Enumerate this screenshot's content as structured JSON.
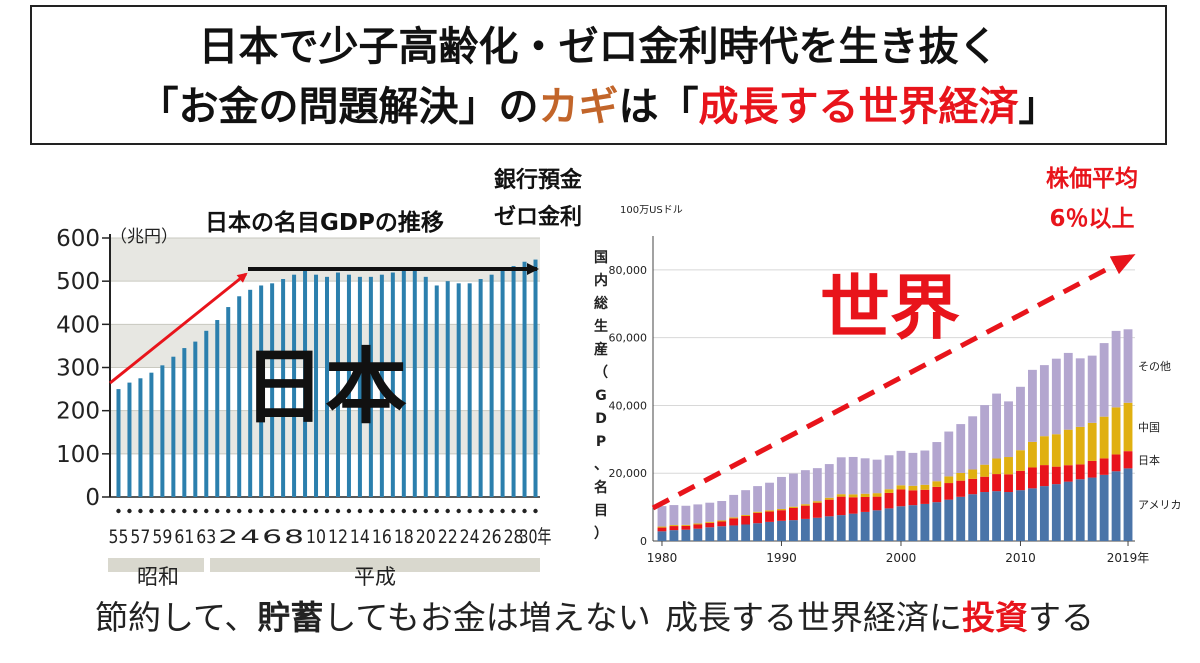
{
  "headline": {
    "line1": "日本で少子高齢化・ゼロ金利時代を生き抜く",
    "line2_a": "「お金の問題解決」の",
    "line2_key": "カギ",
    "line2_b": "は「",
    "line2_red": "成長する世界経済",
    "line2_c": "」"
  },
  "colors": {
    "bar_blue": "#2b7fad",
    "arrow_red": "#e8141b",
    "usa": "#4a74a8",
    "japan": "#e8141b",
    "china": "#e0b010",
    "other": "#b3a6cf",
    "band_gray": "#e7e7e2"
  },
  "annotations": {
    "bank_deposit": "銀行預金",
    "zero_rate": "ゼロ金利",
    "japan_label": "日本",
    "world_label": "世界",
    "stock_avg": "株価平均",
    "six_pct": "6％以上"
  },
  "captions": {
    "left_a": "節約して、",
    "left_b": "貯蓄",
    "left_c": "してもお金は増えない",
    "right_a": "成長する世界経済に",
    "right_b": "投資",
    "right_c": "する"
  },
  "chart_data": [
    {
      "type": "bar",
      "title": "日本の名目GDPの推移",
      "ylabel": "（兆円）",
      "ylim": [
        0,
        600
      ],
      "yticks": [
        "0",
        "100",
        "200",
        "300",
        "400",
        "500",
        "600"
      ],
      "categories": [
        "S55",
        "S56",
        "S57",
        "S58",
        "S59",
        "S60",
        "S61",
        "S62",
        "S63",
        "H1",
        "H2",
        "H3",
        "H4",
        "H5",
        "H6",
        "H7",
        "H8",
        "H9",
        "H10",
        "H11",
        "H12",
        "H13",
        "H14",
        "H15",
        "H16",
        "H17",
        "H18",
        "H19",
        "H20",
        "H21",
        "H22",
        "H23",
        "H24",
        "H25",
        "H26",
        "H27",
        "H28",
        "H29",
        "H30"
      ],
      "values": [
        250,
        265,
        275,
        288,
        305,
        325,
        345,
        360,
        385,
        410,
        440,
        465,
        480,
        490,
        495,
        505,
        515,
        525,
        515,
        510,
        520,
        515,
        510,
        510,
        515,
        520,
        525,
        530,
        510,
        490,
        500,
        495,
        495,
        505,
        515,
        530,
        535,
        545,
        550
      ],
      "x_tick_labels": [
        "55",
        "57",
        "59",
        "61",
        "63",
        "2",
        "4",
        "6",
        "8",
        "10",
        "12",
        "14",
        "16",
        "18",
        "20",
        "22",
        "24",
        "26",
        "28",
        "30年"
      ],
      "era_labels": [
        "昭和",
        "平成"
      ]
    },
    {
      "type": "bar",
      "stacked": true,
      "unit": "100万USドル",
      "ylabel": "国内総生産（GDP、名目）",
      "ylim": [
        0,
        90000
      ],
      "yticks": [
        "0",
        "20,000",
        "40,000",
        "60,000",
        "80,000"
      ],
      "x": [
        1980,
        1981,
        1982,
        1983,
        1984,
        1985,
        1986,
        1987,
        1988,
        1989,
        1990,
        1991,
        1992,
        1993,
        1994,
        1995,
        1996,
        1997,
        1998,
        1999,
        2000,
        2001,
        2002,
        2003,
        2004,
        2005,
        2006,
        2007,
        2008,
        2009,
        2010,
        2011,
        2012,
        2013,
        2014,
        2015,
        2016,
        2017,
        2018,
        2019
      ],
      "x_tick_labels": [
        "1980",
        "1990",
        "2000",
        "2010",
        "2019年"
      ],
      "series": [
        {
          "name": "アメリカ",
          "values": [
            2860,
            3210,
            3340,
            3640,
            4040,
            4350,
            4590,
            4870,
            5250,
            5640,
            5960,
            6160,
            6520,
            6860,
            7290,
            7640,
            8070,
            8580,
            9060,
            9630,
            10250,
            10580,
            10940,
            11460,
            12210,
            13040,
            13810,
            14450,
            14710,
            14450,
            15000,
            15540,
            16200,
            16780,
            17520,
            18220,
            18710,
            19520,
            20580,
            21430
          ]
        },
        {
          "name": "日本",
          "values": [
            1100,
            1200,
            1130,
            1240,
            1320,
            1400,
            2080,
            2530,
            3070,
            3050,
            3130,
            3580,
            3910,
            4450,
            4910,
            5450,
            4830,
            4410,
            4030,
            4560,
            4970,
            4370,
            4180,
            4520,
            4890,
            4760,
            4530,
            4520,
            5040,
            5230,
            5700,
            6160,
            6200,
            5160,
            4850,
            4390,
            4930,
            4860,
            4960,
            5080
          ]
        },
        {
          "name": "中国",
          "values": [
            300,
            290,
            280,
            300,
            310,
            310,
            300,
            270,
            310,
            350,
            360,
            380,
            430,
            440,
            560,
            730,
            860,
            960,
            1030,
            1090,
            1210,
            1340,
            1470,
            1660,
            1960,
            2290,
            2750,
            3550,
            4590,
            5100,
            6090,
            7550,
            8530,
            9570,
            10480,
            11060,
            11230,
            12310,
            13890,
            14280
          ]
        },
        {
          "name": "その他",
          "values": [
            6040,
            5900,
            5650,
            5620,
            5630,
            5740,
            6630,
            7330,
            7570,
            8160,
            9450,
            9780,
            10040,
            9750,
            9940,
            10880,
            11040,
            10450,
            9880,
            10020,
            10170,
            9710,
            10110,
            11560,
            13240,
            14410,
            15710,
            17580,
            19160,
            16420,
            18710,
            21250,
            20970,
            22290,
            22650,
            20230,
            19830,
            21710,
            22570,
            21680
          ]
        }
      ]
    }
  ]
}
